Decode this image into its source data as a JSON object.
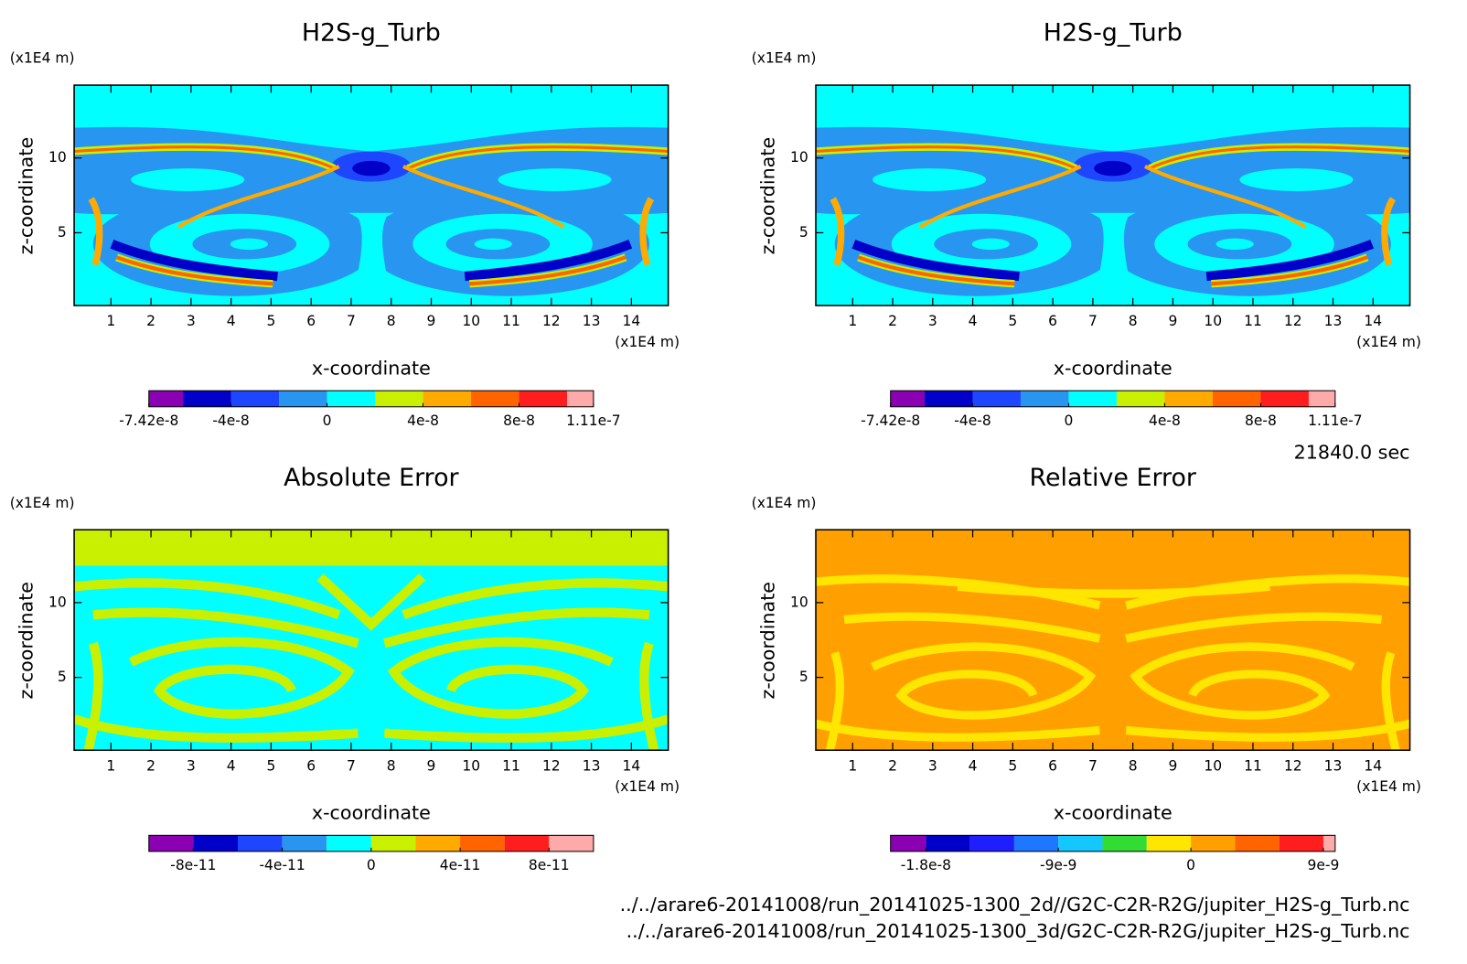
{
  "chart_data": [
    {
      "type": "contour",
      "title": "H2S-g_Turb",
      "xlabel": "x-coordinate",
      "ylabel": "z-coordinate",
      "xunit": "(x1E4 m)",
      "yunit": "(x1E4 m)",
      "xlim": [
        0.08,
        14.92
      ],
      "ylim": [
        0.13,
        14.87
      ],
      "xticks": [
        1,
        2,
        3,
        4,
        5,
        6,
        7,
        8,
        9,
        10,
        11,
        12,
        13,
        14
      ],
      "yticks": [
        5,
        10
      ],
      "colorbar": {
        "levels": [
          -7.42e-08,
          -6e-08,
          -4e-08,
          -2e-08,
          0,
          2e-08,
          4e-08,
          6e-08,
          8e-08,
          1e-07,
          1.11e-07
        ],
        "colors": [
          "#8c00b4",
          "#0000c8",
          "#1e46ff",
          "#2896f0",
          "#00ffff",
          "#c8f000",
          "#ffaa00",
          "#ff6400",
          "#ff1e1e",
          "#ffaaaa"
        ],
        "ticks": [
          -7.42e-08,
          -4e-08,
          0,
          4e-08,
          8e-08,
          1.11e-07
        ]
      }
    },
    {
      "type": "contour",
      "title": "H2S-g_Turb",
      "xlabel": "x-coordinate",
      "ylabel": "z-coordinate",
      "xunit": "(x1E4 m)",
      "yunit": "(x1E4 m)",
      "xlim": [
        0.08,
        14.92
      ],
      "ylim": [
        0.13,
        14.87
      ],
      "xticks": [
        1,
        2,
        3,
        4,
        5,
        6,
        7,
        8,
        9,
        10,
        11,
        12,
        13,
        14
      ],
      "yticks": [
        5,
        10
      ],
      "colorbar": {
        "levels": [
          -7.42e-08,
          -6e-08,
          -4e-08,
          -2e-08,
          0,
          2e-08,
          4e-08,
          6e-08,
          8e-08,
          1e-07,
          1.11e-07
        ],
        "colors": [
          "#8c00b4",
          "#0000c8",
          "#1e46ff",
          "#2896f0",
          "#00ffff",
          "#c8f000",
          "#ffaa00",
          "#ff6400",
          "#ff1e1e",
          "#ffaaaa"
        ],
        "ticks": [
          -7.42e-08,
          -4e-08,
          0,
          4e-08,
          8e-08,
          1.11e-07
        ]
      }
    },
    {
      "type": "contour",
      "title": "Absolute Error",
      "xlabel": "x-coordinate",
      "ylabel": "z-coordinate",
      "xunit": "(x1E4 m)",
      "yunit": "(x1E4 m)",
      "xlim": [
        0.08,
        14.92
      ],
      "ylim": [
        0.13,
        14.87
      ],
      "xticks": [
        1,
        2,
        3,
        4,
        5,
        6,
        7,
        8,
        9,
        10,
        11,
        12,
        13,
        14
      ],
      "yticks": [
        5,
        10
      ],
      "colorbar": {
        "levels": [
          -1e-10,
          -8e-11,
          -6e-11,
          -4e-11,
          -2e-11,
          0,
          2e-11,
          4e-11,
          6e-11,
          8e-11,
          1e-10
        ],
        "colors": [
          "#8c00b4",
          "#0000c8",
          "#1e46ff",
          "#2896f0",
          "#00ffff",
          "#c8f000",
          "#ffaa00",
          "#ff6400",
          "#ff1e1e",
          "#ffaaaa"
        ],
        "ticks": [
          -8e-11,
          -4e-11,
          0,
          4e-11,
          8e-11
        ]
      }
    },
    {
      "type": "contour",
      "title": "Relative Error",
      "xlabel": "x-coordinate",
      "ylabel": "z-coordinate",
      "xunit": "(x1E4 m)",
      "yunit": "(x1E4 m)",
      "xlim": [
        0.08,
        14.92
      ],
      "ylim": [
        0.13,
        14.87
      ],
      "xticks": [
        1,
        2,
        3,
        4,
        5,
        6,
        7,
        8,
        9,
        10,
        11,
        12,
        13,
        14
      ],
      "yticks": [
        5,
        10
      ],
      "colorbar": {
        "levels": [
          -2.04e-08,
          -1.8e-08,
          -1.5e-08,
          -1.2e-08,
          -9e-09,
          -6e-09,
          -3e-09,
          0,
          3e-09,
          6e-09,
          9e-09,
          9.8e-09
        ],
        "colors": [
          "#8c00b4",
          "#0000c8",
          "#1e1eff",
          "#1e78ff",
          "#14c8ff",
          "#32dc32",
          "#ffe600",
          "#ffa000",
          "#ff6400",
          "#ff1e1e",
          "#ffaaaa"
        ],
        "ticks": [
          -1.8e-08,
          -9e-09,
          0,
          9e-09
        ]
      }
    }
  ],
  "footer": {
    "time": "21840.0 sec",
    "files": [
      "../../arare6-20141008/run_20141025-1300_2d//G2C-C2R-R2G/jupiter_H2S-g_Turb.nc",
      "../../arare6-20141008/run_20141025-1300_3d/G2C-C2R-R2G/jupiter_H2S-g_Turb.nc"
    ]
  }
}
